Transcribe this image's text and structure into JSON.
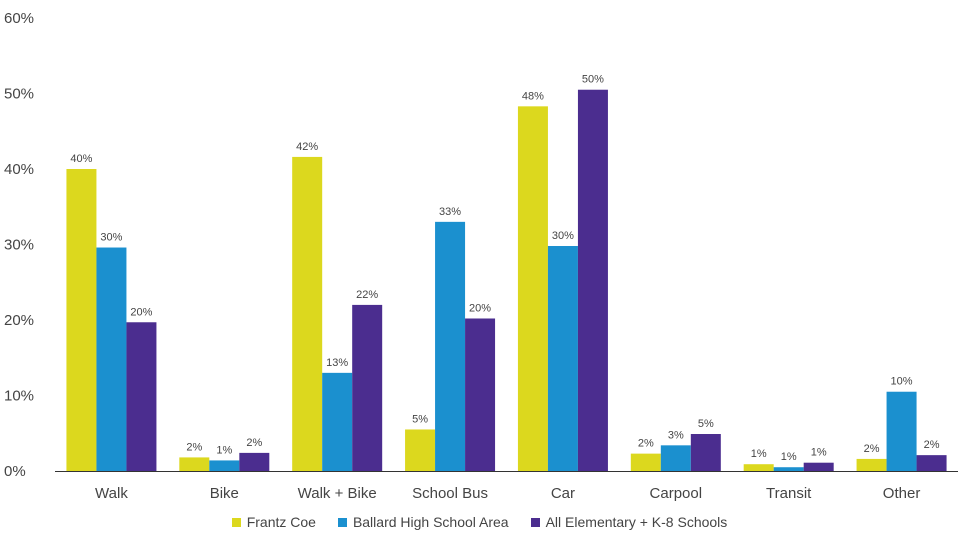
{
  "chart_data": {
    "type": "bar",
    "categories": [
      "Walk",
      "Bike",
      "Walk + Bike",
      "School Bus",
      "Car",
      "Carpool",
      "Transit",
      "Other"
    ],
    "series": [
      {
        "name": "Frantz Coe",
        "color": "#DCD81E",
        "values": [
          40,
          1.8,
          41.6,
          5.5,
          48.3,
          2.3,
          0.9,
          1.6
        ],
        "labels": [
          "40%",
          "2%",
          "42%",
          "5%",
          "48%",
          "2%",
          "1%",
          "2%"
        ]
      },
      {
        "name": "Ballard High School Area",
        "color": "#1B90CF",
        "values": [
          29.6,
          1.4,
          13,
          33,
          29.8,
          3.4,
          0.5,
          10.5
        ],
        "labels": [
          "30%",
          "1%",
          "13%",
          "33%",
          "30%",
          "3%",
          "1%",
          "10%"
        ]
      },
      {
        "name": "All Elementary + K-8 Schools",
        "color": "#4B2D8F",
        "values": [
          19.7,
          2.4,
          22,
          20.2,
          50.5,
          4.9,
          1.1,
          2.1
        ],
        "labels": [
          "20%",
          "2%",
          "22%",
          "20%",
          "50%",
          "5%",
          "1%",
          "2%"
        ]
      }
    ],
    "yticks": [
      "0%",
      "10%",
      "20%",
      "30%",
      "40%",
      "50%",
      "60%"
    ],
    "ylim": [
      0,
      60
    ],
    "grid": false,
    "legend_position": "bottom"
  }
}
